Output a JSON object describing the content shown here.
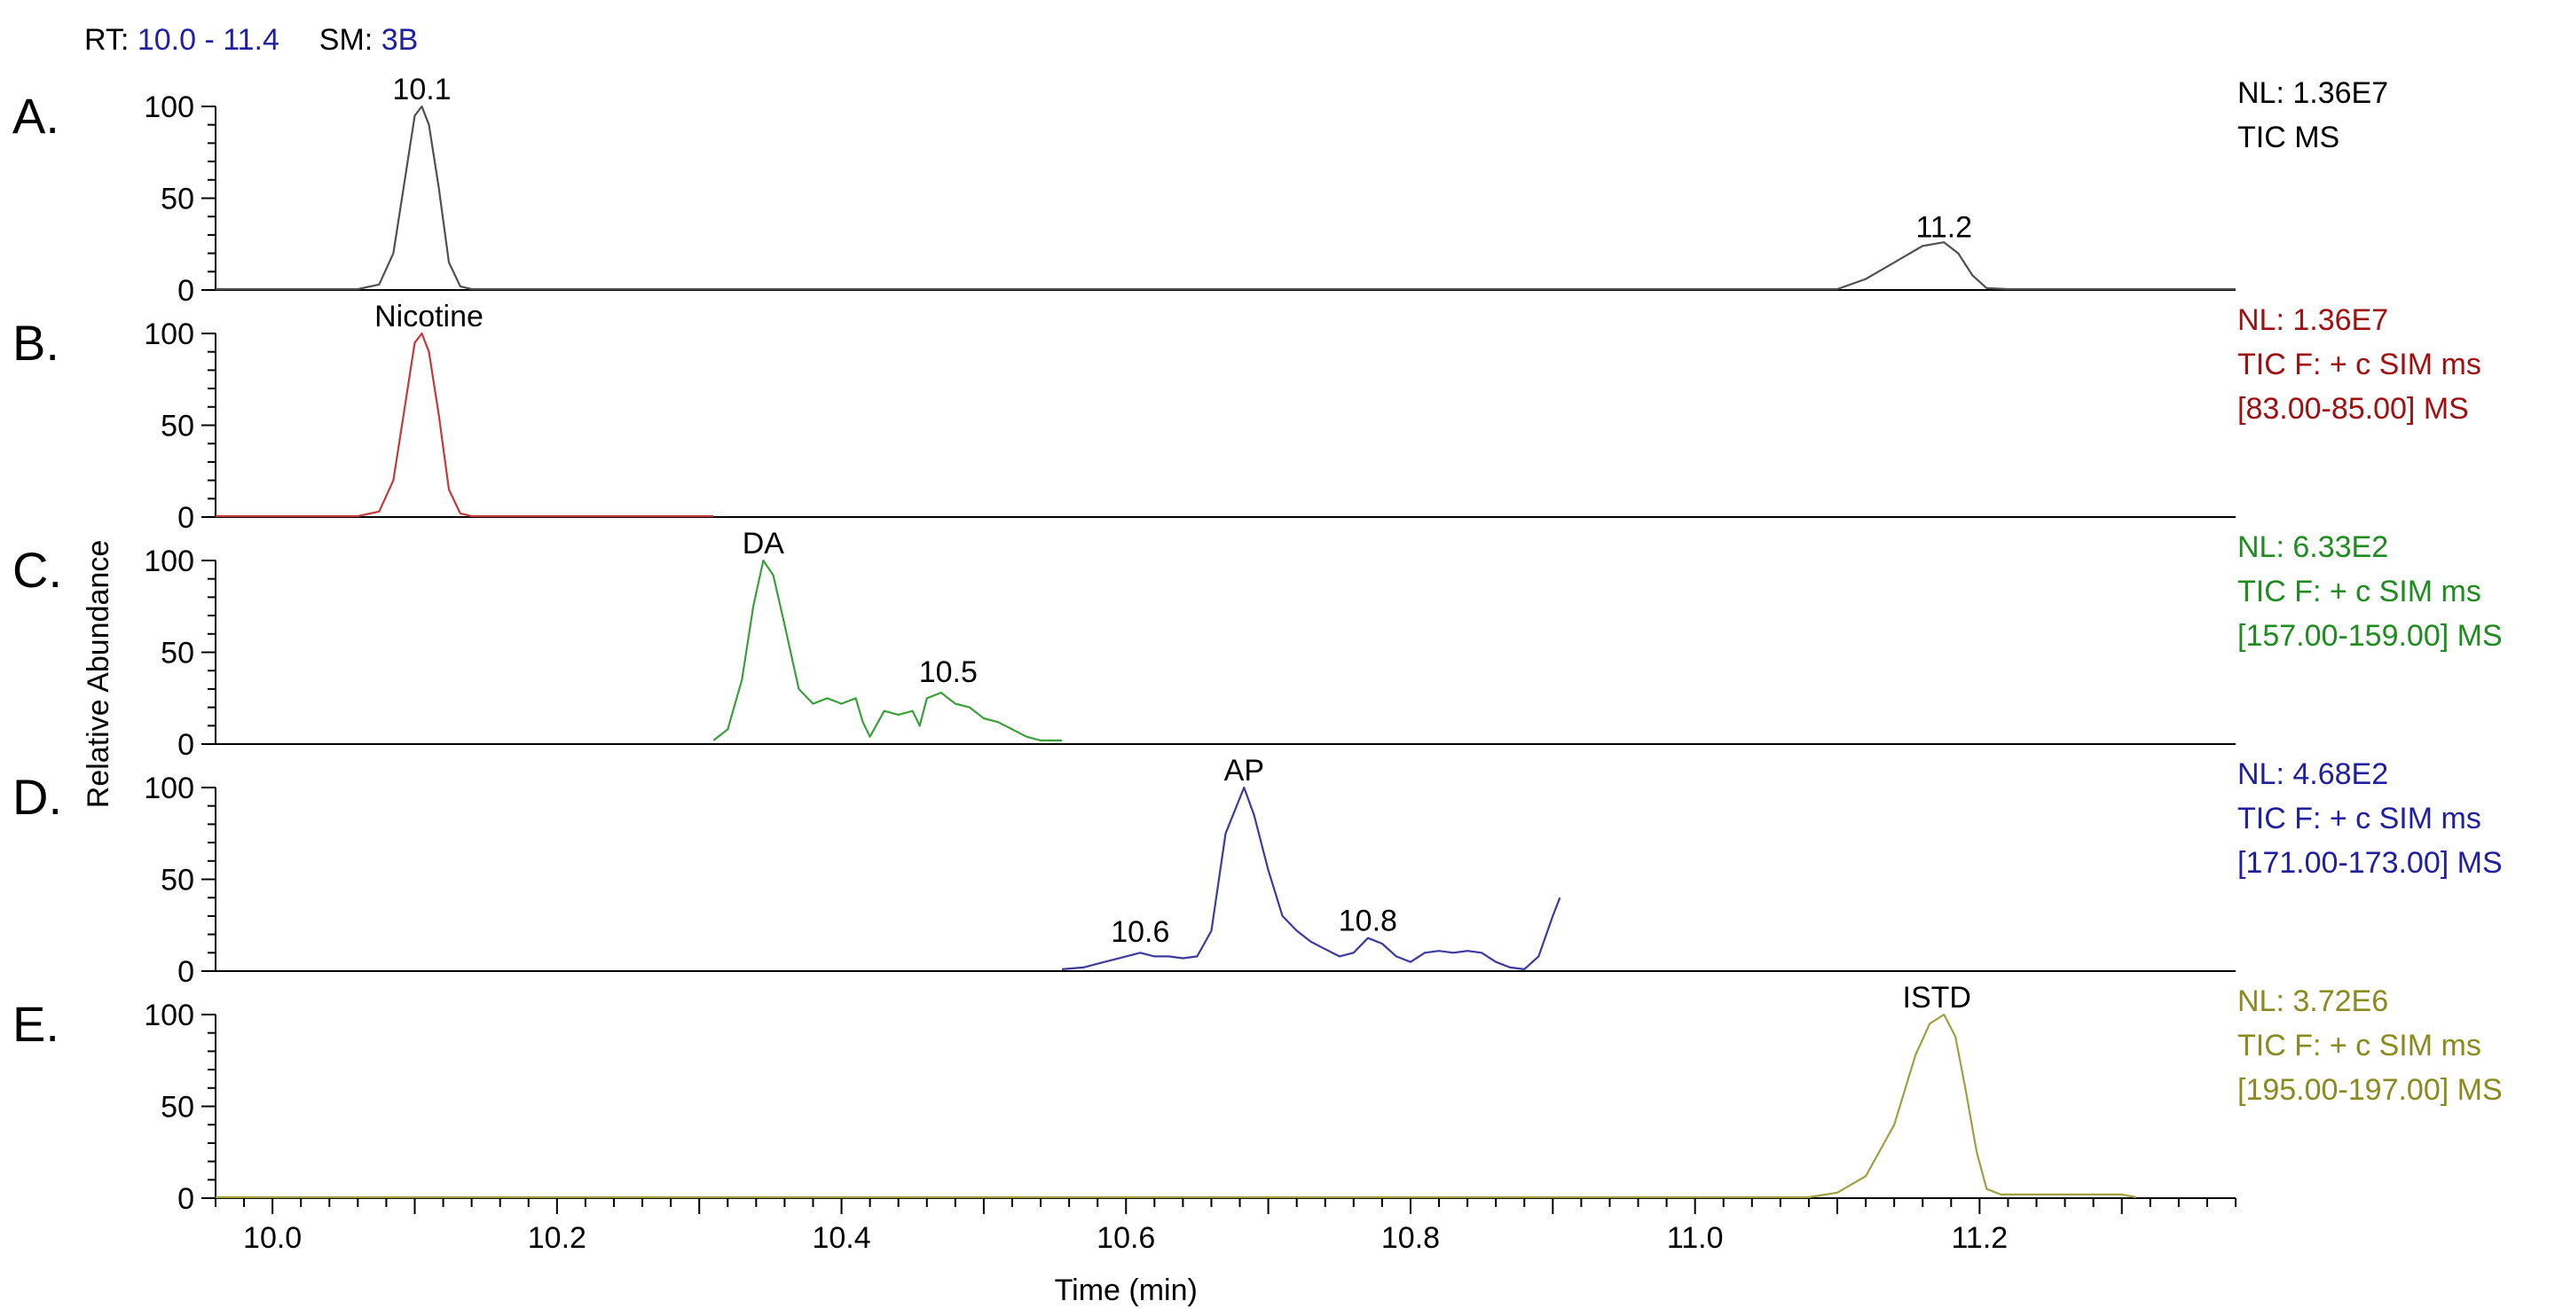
{
  "header": {
    "rt_label": "RT:",
    "rt_value": "10.0 - 11.4",
    "sm_label": "SM:",
    "sm_value": "3B"
  },
  "chart_data": {
    "type": "line",
    "ylabel": "Relative Abundance",
    "xlabel": "Time (min)",
    "xlim": [
      9.96,
      11.38
    ],
    "x_ticks": [
      "10.0",
      "10.2",
      "10.4",
      "10.6",
      "10.8",
      "11.0",
      "11.2"
    ],
    "y_ticks": [
      "0",
      "50",
      "100"
    ],
    "ylim": [
      0,
      100
    ],
    "panels": [
      {
        "letter": "A.",
        "color": "#505050",
        "info": [
          "NL: 1.36E7",
          "TIC  MS"
        ],
        "info_color": "#000000",
        "annotations": [
          {
            "text": "10.1",
            "x": 10.105,
            "y": 100
          },
          {
            "text": "11.2",
            "x": 11.175,
            "y": 25
          }
        ],
        "points": [
          [
            9.96,
            0.5
          ],
          [
            10.06,
            0.5
          ],
          [
            10.075,
            3
          ],
          [
            10.085,
            20
          ],
          [
            10.093,
            60
          ],
          [
            10.1,
            95
          ],
          [
            10.105,
            100
          ],
          [
            10.11,
            90
          ],
          [
            10.117,
            55
          ],
          [
            10.124,
            15
          ],
          [
            10.132,
            2
          ],
          [
            10.14,
            0.5
          ],
          [
            11.1,
            0.5
          ],
          [
            11.12,
            6
          ],
          [
            11.14,
            15
          ],
          [
            11.16,
            24
          ],
          [
            11.175,
            26
          ],
          [
            11.185,
            20
          ],
          [
            11.195,
            8
          ],
          [
            11.205,
            1
          ],
          [
            11.22,
            0.5
          ],
          [
            11.38,
            0.5
          ]
        ]
      },
      {
        "letter": "B.",
        "color": "#c23a3a",
        "info": [
          "NL: 1.36E7",
          "TIC F: + c SIM ms",
          "[83.00-85.00]  MS"
        ],
        "info_color": "#a01010",
        "annotations": [
          {
            "text": "Nicotine",
            "x": 10.11,
            "y": 100
          }
        ],
        "points": [
          [
            9.96,
            0.5
          ],
          [
            10.06,
            0.5
          ],
          [
            10.075,
            3
          ],
          [
            10.085,
            20
          ],
          [
            10.093,
            60
          ],
          [
            10.1,
            95
          ],
          [
            10.105,
            100
          ],
          [
            10.11,
            90
          ],
          [
            10.117,
            55
          ],
          [
            10.124,
            15
          ],
          [
            10.132,
            2
          ],
          [
            10.14,
            0.5
          ],
          [
            10.31,
            0.5
          ]
        ]
      },
      {
        "letter": "C.",
        "color": "#3aa03a",
        "info": [
          "NL: 6.33E2",
          "TIC F: + c SIM ms",
          "[157.00-159.00]  MS"
        ],
        "info_color": "#1e8c1e",
        "annotations": [
          {
            "text": "DA",
            "x": 10.345,
            "y": 100
          },
          {
            "text": "10.5",
            "x": 10.475,
            "y": 30
          }
        ],
        "points": [
          [
            10.31,
            2
          ],
          [
            10.32,
            8
          ],
          [
            10.33,
            35
          ],
          [
            10.338,
            75
          ],
          [
            10.345,
            100
          ],
          [
            10.352,
            92
          ],
          [
            10.36,
            65
          ],
          [
            10.37,
            30
          ],
          [
            10.38,
            22
          ],
          [
            10.39,
            25
          ],
          [
            10.4,
            22
          ],
          [
            10.41,
            25
          ],
          [
            10.415,
            12
          ],
          [
            10.42,
            4
          ],
          [
            10.43,
            18
          ],
          [
            10.44,
            16
          ],
          [
            10.45,
            18
          ],
          [
            10.455,
            10
          ],
          [
            10.46,
            25
          ],
          [
            10.47,
            28
          ],
          [
            10.48,
            22
          ],
          [
            10.49,
            20
          ],
          [
            10.5,
            14
          ],
          [
            10.51,
            12
          ],
          [
            10.52,
            8
          ],
          [
            10.53,
            4
          ],
          [
            10.54,
            2
          ],
          [
            10.555,
            2
          ]
        ]
      },
      {
        "letter": "D.",
        "color": "#3a3aa0",
        "info": [
          "NL: 4.68E2",
          "TIC F: + c SIM ms",
          "[171.00-173.00]  MS"
        ],
        "info_color": "#1f1fa0",
        "annotations": [
          {
            "text": "AP",
            "x": 10.683,
            "y": 100
          },
          {
            "text": "10.6",
            "x": 10.61,
            "y": 12
          },
          {
            "text": "10.8",
            "x": 10.77,
            "y": 18
          }
        ],
        "points": [
          [
            10.555,
            1
          ],
          [
            10.57,
            2
          ],
          [
            10.58,
            4
          ],
          [
            10.59,
            6
          ],
          [
            10.6,
            8
          ],
          [
            10.61,
            10
          ],
          [
            10.62,
            8
          ],
          [
            10.63,
            8
          ],
          [
            10.64,
            7
          ],
          [
            10.65,
            8
          ],
          [
            10.66,
            22
          ],
          [
            10.67,
            75
          ],
          [
            10.683,
            100
          ],
          [
            10.69,
            85
          ],
          [
            10.7,
            55
          ],
          [
            10.71,
            30
          ],
          [
            10.72,
            22
          ],
          [
            10.73,
            16
          ],
          [
            10.74,
            12
          ],
          [
            10.75,
            8
          ],
          [
            10.76,
            10
          ],
          [
            10.77,
            18
          ],
          [
            10.78,
            15
          ],
          [
            10.79,
            8
          ],
          [
            10.8,
            5
          ],
          [
            10.81,
            10
          ],
          [
            10.82,
            11
          ],
          [
            10.83,
            10
          ],
          [
            10.84,
            11
          ],
          [
            10.85,
            10
          ],
          [
            10.86,
            5
          ],
          [
            10.87,
            2
          ],
          [
            10.88,
            1
          ],
          [
            10.89,
            8
          ],
          [
            10.9,
            30
          ],
          [
            10.905,
            40
          ]
        ]
      },
      {
        "letter": "E.",
        "color": "#a0a040",
        "info": [
          "NL: 3.72E6",
          "TIC F: + c SIM ms",
          "[195.00-197.00]  MS"
        ],
        "info_color": "#8a8a1e",
        "annotations": [
          {
            "text": "ISTD",
            "x": 11.17,
            "y": 100
          }
        ],
        "points": [
          [
            9.96,
            0.5
          ],
          [
            11.08,
            0.5
          ],
          [
            11.1,
            3
          ],
          [
            11.12,
            12
          ],
          [
            11.14,
            40
          ],
          [
            11.155,
            78
          ],
          [
            11.165,
            95
          ],
          [
            11.175,
            100
          ],
          [
            11.183,
            88
          ],
          [
            11.19,
            60
          ],
          [
            11.198,
            25
          ],
          [
            11.205,
            5
          ],
          [
            11.215,
            2
          ],
          [
            11.3,
            2
          ],
          [
            11.31,
            0.5
          ]
        ]
      }
    ]
  }
}
